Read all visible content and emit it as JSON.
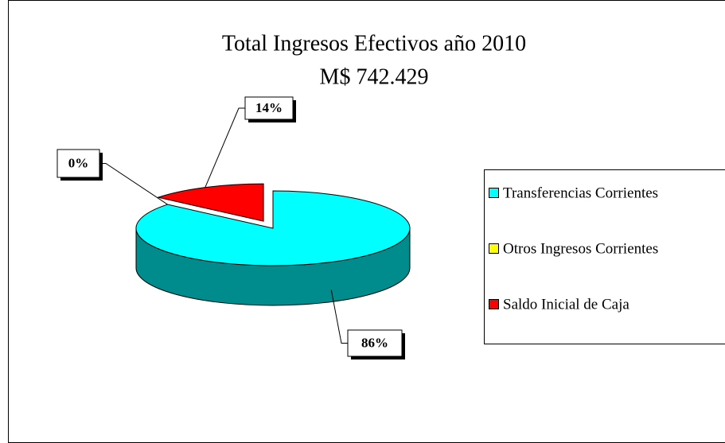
{
  "chart_data": {
    "type": "pie",
    "title": "Total Ingresos Efectivos año 2010",
    "subtitle": "M$ 742.429",
    "categories": [
      "Transferencias Corrientes",
      "Otros Ingresos Corrientes",
      "Saldo Inicial de Caja"
    ],
    "values": [
      86,
      0,
      14
    ],
    "value_labels": [
      "86%",
      "0%",
      "14%"
    ],
    "colors": [
      "#00ffff",
      "#ffff00",
      "#ff0000"
    ],
    "legend": "right"
  }
}
